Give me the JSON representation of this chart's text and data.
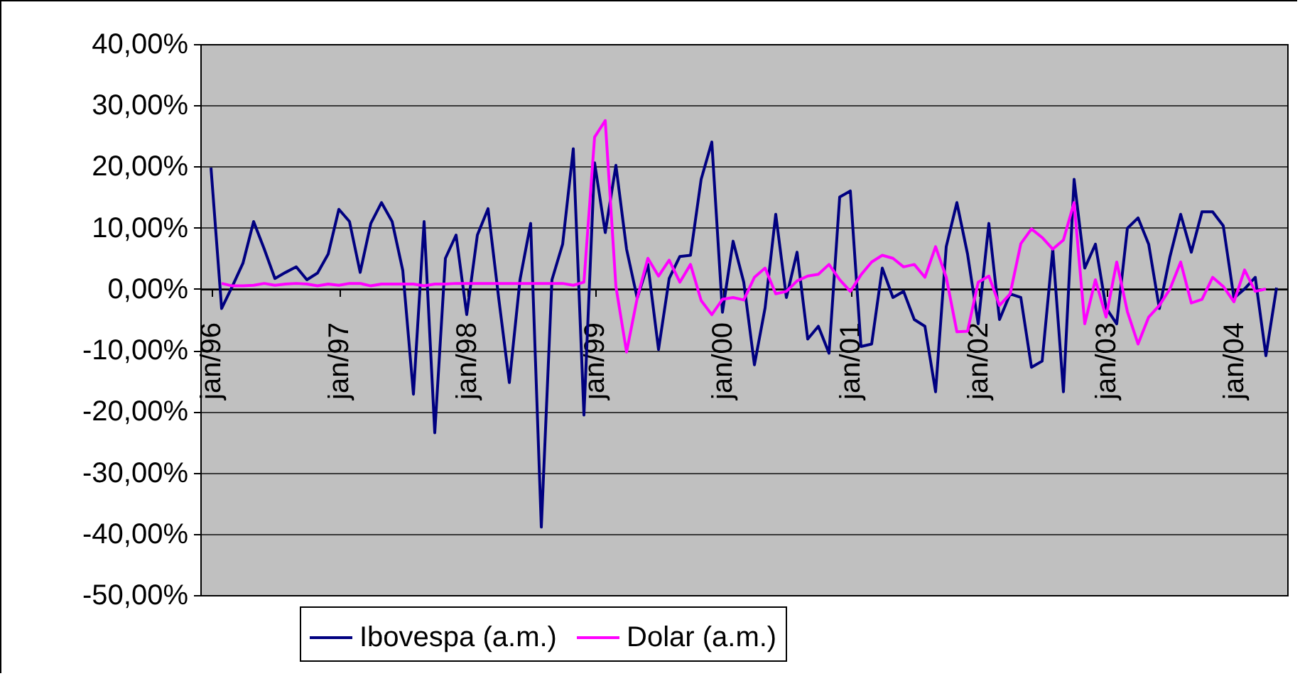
{
  "chart_data": {
    "type": "line",
    "categories": [
      "jan/96",
      null,
      null,
      null,
      null,
      null,
      null,
      null,
      null,
      null,
      null,
      null,
      "jan/97",
      null,
      null,
      null,
      null,
      null,
      null,
      null,
      null,
      null,
      null,
      null,
      "jan/98",
      null,
      null,
      null,
      null,
      null,
      null,
      null,
      null,
      null,
      null,
      null,
      "jan/99",
      null,
      null,
      null,
      null,
      null,
      null,
      null,
      null,
      null,
      null,
      null,
      "jan/00",
      null,
      null,
      null,
      null,
      null,
      null,
      null,
      null,
      null,
      null,
      null,
      "jan/01",
      null,
      null,
      null,
      null,
      null,
      null,
      null,
      null,
      null,
      null,
      null,
      "jan/02",
      null,
      null,
      null,
      null,
      null,
      null,
      null,
      null,
      null,
      null,
      null,
      "jan/03",
      null,
      null,
      null,
      null,
      null,
      null,
      null,
      null,
      null,
      null,
      null,
      "jan/04",
      null,
      null,
      null,
      null
    ],
    "series": [
      {
        "name": "Ibovespa (a.m.)",
        "color": "#000080",
        "values": [
          19.8,
          -3.2,
          0.4,
          4.2,
          11,
          6.5,
          1.7,
          2.7,
          3.6,
          1.5,
          2.6,
          5.7,
          13,
          11,
          2.7,
          10.7,
          14.1,
          11,
          3,
          -17.2,
          11,
          -23.5,
          5,
          8.8,
          -4.2,
          8.8,
          13.1,
          -1.5,
          -15.3,
          1.5,
          10.7,
          -38.9,
          1.5,
          7.3,
          22.9,
          -20.6,
          20.6,
          9.2,
          20.2,
          6.5,
          -1.5,
          4,
          -9.9,
          1.7,
          5.3,
          5.5,
          17.9,
          24,
          -3.8,
          7.8,
          1.1,
          -12.4,
          -3.1,
          12.2,
          -1.4,
          6,
          -8.2,
          -6.1,
          -10.5,
          15,
          16,
          -9.4,
          -9,
          3.4,
          -1.4,
          -0.4,
          -5,
          -6.1,
          -16.8,
          6.9,
          14.1,
          5.7,
          -5.7,
          10.7,
          -5,
          -0.8,
          -1.4,
          -12.8,
          -11.8,
          6.5,
          -16.8,
          17.9,
          3.4,
          7.3,
          -3.1,
          -5.7,
          9.9,
          11.6,
          7.3,
          -3.2,
          5.3,
          12.2,
          6,
          12.6,
          12.6,
          10.3,
          -1.5,
          0,
          1.9,
          -10.9,
          0.2
        ]
      },
      {
        "name": "Dolar (a.m.)",
        "color": "#ff00ff",
        "values": [
          null,
          0.9,
          0.5,
          0.5,
          0.6,
          0.9,
          0.6,
          0.8,
          0.9,
          0.8,
          0.5,
          0.8,
          0.6,
          0.9,
          0.9,
          0.5,
          0.8,
          0.8,
          0.8,
          0.8,
          0.5,
          0.8,
          0.8,
          0.9,
          0.9,
          0.9,
          0.9,
          0.9,
          0.9,
          0.9,
          0.9,
          0.9,
          0.9,
          0.9,
          0.6,
          1.1,
          24.8,
          27.5,
          0.4,
          -10.3,
          -1.5,
          5,
          2.1,
          4.7,
          1.1,
          4,
          -1.9,
          -4.2,
          -1.7,
          -1.4,
          -1.8,
          1.9,
          3.4,
          -0.8,
          -0.4,
          1.3,
          2.1,
          2.4,
          4,
          1.5,
          -0.4,
          2.3,
          4.4,
          5.5,
          5,
          3.6,
          4,
          1.9,
          6.9,
          1.9,
          -7,
          -6.9,
          1.1,
          2.1,
          -2.7,
          -0.8,
          7.4,
          9.8,
          8.4,
          6.5,
          8,
          14.1,
          -5.7,
          1.5,
          -4.6,
          4.4,
          -3.7,
          -9,
          -4.6,
          -2.7,
          0,
          4.4,
          -2.3,
          -1.7,
          1.9,
          0.4,
          -2.1,
          3.1,
          -0.4,
          0,
          null
        ]
      }
    ],
    "ylim": [
      -50,
      40
    ],
    "yticks": [
      {
        "value": -50,
        "label": "-50,00%"
      },
      {
        "value": -40,
        "label": "-40,00%"
      },
      {
        "value": -30,
        "label": "-30,00%"
      },
      {
        "value": -20,
        "label": "-20,00%"
      },
      {
        "value": -10,
        "label": "-10,00%"
      },
      {
        "value": 0,
        "label": "0,00%"
      },
      {
        "value": 10,
        "label": "10,00%"
      },
      {
        "value": 20,
        "label": "20,00%"
      },
      {
        "value": 30,
        "label": "30,00%"
      },
      {
        "value": 40,
        "label": "40,00%"
      }
    ],
    "grid": "y",
    "legend": "bottom",
    "marker": "none",
    "line_style": "solid"
  }
}
